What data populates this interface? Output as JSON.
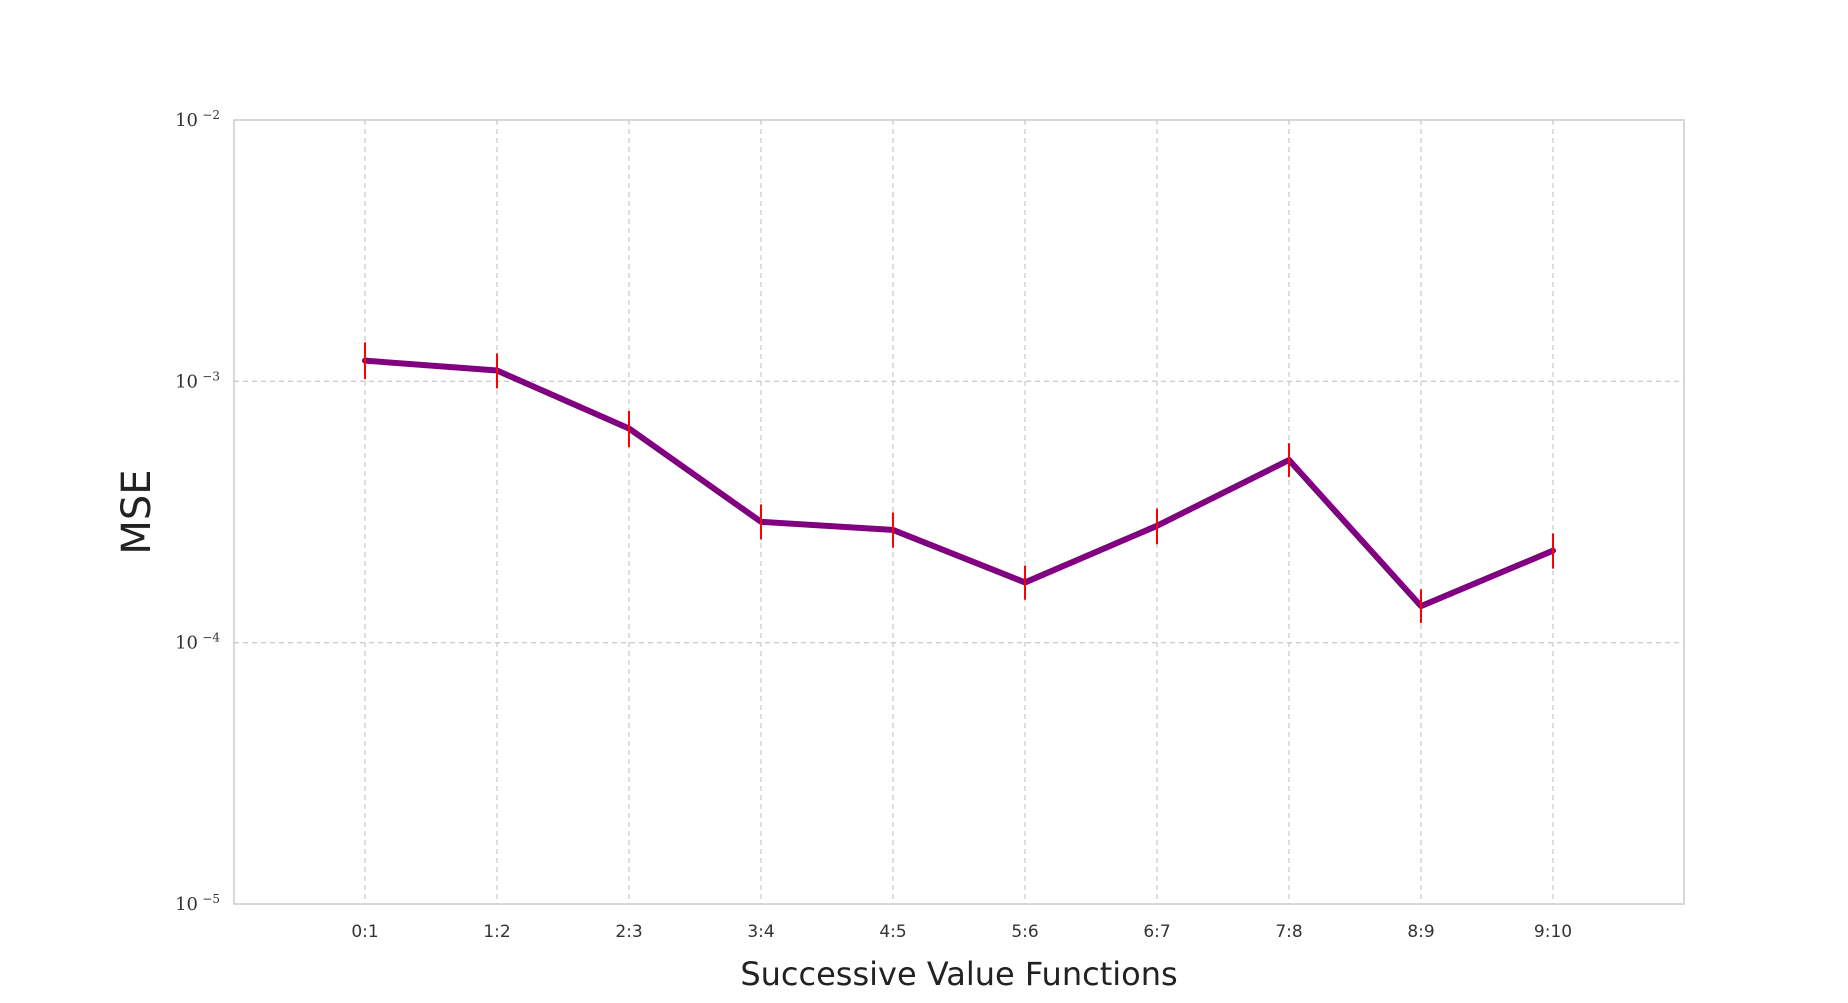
{
  "chart_data": {
    "type": "line",
    "title": "",
    "xlabel": "Successive Value Functions",
    "ylabel": "MSE",
    "yscale": "log",
    "ylim": [
      1e-05,
      0.01
    ],
    "yticks": [
      {
        "value": 0.01,
        "base": "10",
        "exp": "−2"
      },
      {
        "value": 0.001,
        "base": "10",
        "exp": "−3"
      },
      {
        "value": 0.0001,
        "base": "10",
        "exp": "−4"
      },
      {
        "value": 1e-05,
        "base": "10",
        "exp": "−5"
      }
    ],
    "grid": true,
    "categories": [
      "0:1",
      "1:2",
      "2:3",
      "3:4",
      "4:5",
      "5:6",
      "6:7",
      "7:8",
      "8:9",
      "9:10"
    ],
    "series": [
      {
        "values": [
          0.0012,
          0.0011,
          0.00066,
          0.00029,
          0.00027,
          0.00017,
          0.00028,
          0.0005,
          0.000138,
          0.000225
        ],
        "err_low": [
          0.00102,
          0.00094,
          0.00056,
          0.000248,
          0.000231,
          0.000146,
          0.000238,
          0.00043,
          0.000119,
          0.000192
        ],
        "err_high": [
          0.00141,
          0.00128,
          0.00077,
          0.000338,
          0.000315,
          0.000197,
          0.000326,
          0.00058,
          0.00016,
          0.000262
        ],
        "color": "#800080",
        "error_color": "#ff0000"
      }
    ],
    "colors": {
      "grid": "#cccccc",
      "frame": "#cccccc",
      "line": "#800080",
      "error": "#ff0000"
    }
  }
}
